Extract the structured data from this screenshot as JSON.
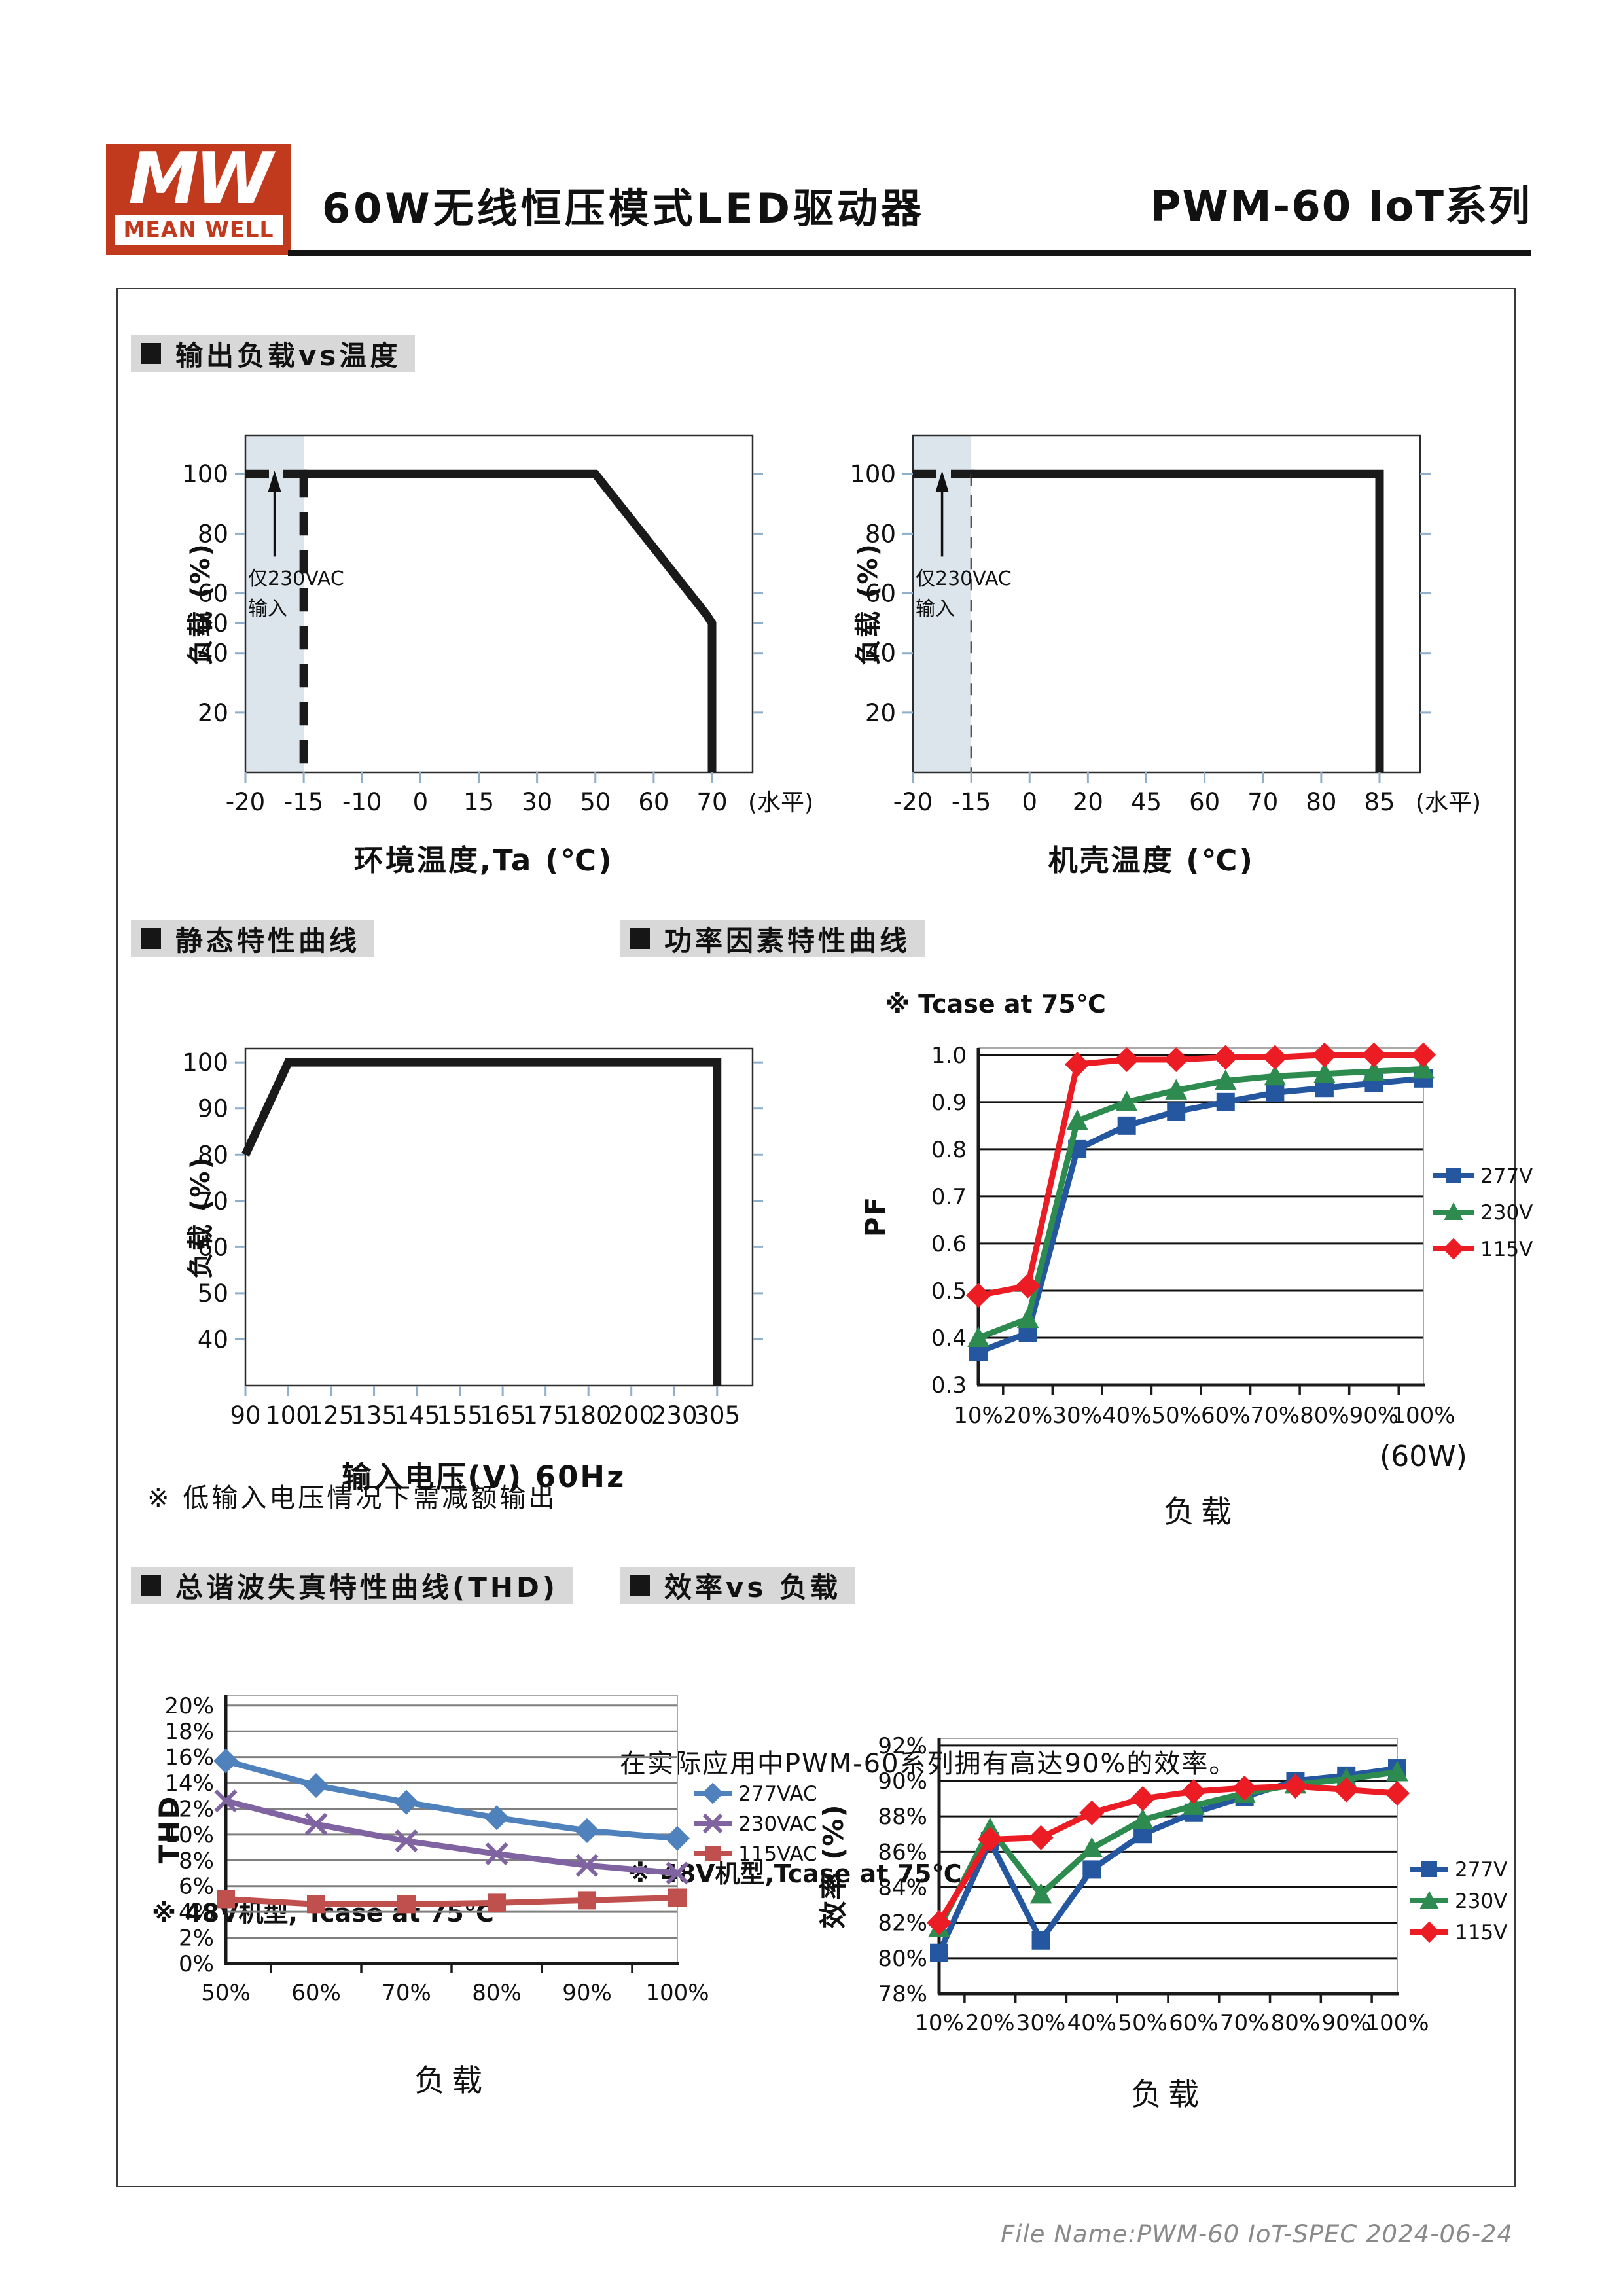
{
  "header": {
    "logo_mw": "MW",
    "logo_name": "MEAN WELL",
    "title": "60W无线恒压模式LED驱动器",
    "series": "PWM-60 IoT系列"
  },
  "sections": {
    "output_vs_temp": "输出负载vs温度",
    "static_curve": "静态特性曲线",
    "pf_curve": "功率因素特性曲线",
    "thd_curve": "总谐波失真特性曲线(THD)",
    "eff_vs_load": "效率vs 负载"
  },
  "notes": {
    "pf_note": "※ Tcase at 75℃",
    "static_note": "※ 低输入电压情况下需减额输出",
    "thd_note": "※ 48V机型, Tcase at 75℃",
    "eff_text": "在实际应用中PWM-60系列拥有高达90%的效率。",
    "eff_note": "※ 48V机型,Tcase at 75℃"
  },
  "footer": {
    "file_name": "File Name:PWM-60 IoT-SPEC  2024-06-24"
  },
  "chart_data": [
    {
      "id": "ambient_derating",
      "type": "line",
      "kind": "derating",
      "xlabel": "环境温度,Ta (℃)",
      "ylabel": "负载 (%)",
      "x_suffix": "(水平)",
      "categories": [
        "-20",
        "-15",
        "-10",
        "0",
        "15",
        "30",
        "50",
        "60",
        "70"
      ],
      "yticks": [
        100,
        80,
        60,
        50,
        40,
        20
      ],
      "ylim": [
        0,
        113
      ],
      "curve": [
        [
          1,
          100
        ],
        [
          6,
          100
        ],
        [
          7.9,
          53
        ],
        [
          8,
          50
        ],
        [
          8,
          0
        ]
      ],
      "dash_h": [
        0,
        1
      ],
      "dash_v": 1,
      "dash_v_thin": false,
      "shade": [
        0,
        1
      ],
      "shade_color": "#dce4ec",
      "annotation": [
        "仅230VAC",
        "输入"
      ]
    },
    {
      "id": "case_derating",
      "type": "line",
      "kind": "derating",
      "xlabel": "机壳温度 (℃)",
      "ylabel": "负载 (%)",
      "x_suffix": "(水平)",
      "categories": [
        "-20",
        "-15",
        "0",
        "20",
        "45",
        "60",
        "70",
        "80",
        "85"
      ],
      "yticks": [
        100,
        80,
        60,
        40,
        20
      ],
      "ylim": [
        0,
        113
      ],
      "curve": [
        [
          1,
          100
        ],
        [
          8,
          100
        ],
        [
          8,
          0
        ]
      ],
      "dash_h": [
        0,
        1
      ],
      "dash_v": 1,
      "dash_v_thin": true,
      "shade": [
        0,
        1
      ],
      "shade_color": "#dce4ec",
      "annotation": [
        "仅230VAC",
        "输入"
      ]
    },
    {
      "id": "static_characteristic",
      "type": "line",
      "kind": "derating",
      "xlabel": "输入电压(V) 60Hz",
      "ylabel": "负载 (%)",
      "categories": [
        "90",
        "100",
        "125",
        "135",
        "145",
        "155",
        "165",
        "175",
        "180",
        "200",
        "230",
        "305"
      ],
      "yticks": [
        100,
        90,
        80,
        70,
        60,
        50,
        40
      ],
      "ylim": [
        30,
        103
      ],
      "curve": [
        [
          0,
          80
        ],
        [
          1,
          100
        ],
        [
          11,
          100
        ],
        [
          11,
          30
        ]
      ]
    },
    {
      "id": "pf",
      "type": "line",
      "kind": "series",
      "title_note": "※ Tcase at 75℃",
      "xlabel": "负载",
      "ylabel": "PF",
      "x_sub": "(60W)",
      "categories": [
        "10%",
        "20%",
        "30%",
        "40%",
        "50%",
        "60%",
        "70%",
        "80%",
        "90%",
        "100%"
      ],
      "ytick_values": [
        1.0,
        0.9,
        0.8,
        0.7,
        0.6,
        0.5,
        0.4,
        0.3
      ],
      "ytick_labels": [
        "1.0",
        "0.9",
        "0.8",
        "0.7",
        "0.6",
        "0.5",
        "0.4",
        "0.3"
      ],
      "ylim": [
        0.3,
        1.015
      ],
      "legend_position": "right",
      "grid": true,
      "series": [
        {
          "name": "277V",
          "color": "#2457a0",
          "marker": "square",
          "values": [
            0.37,
            0.41,
            0.8,
            0.85,
            0.88,
            0.9,
            0.92,
            0.93,
            0.94,
            0.95
          ]
        },
        {
          "name": "230V",
          "color": "#2e8b4f",
          "marker": "triangle",
          "values": [
            0.4,
            0.44,
            0.86,
            0.9,
            0.925,
            0.945,
            0.955,
            0.96,
            0.965,
            0.97
          ]
        },
        {
          "name": "115V",
          "color": "#ec1c24",
          "marker": "diamond",
          "values": [
            0.49,
            0.51,
            0.98,
            0.99,
            0.99,
            0.995,
            0.995,
            1.0,
            1.0,
            1.0
          ]
        }
      ]
    },
    {
      "id": "thd",
      "type": "line",
      "kind": "series",
      "title_note": "※ 48V机型, Tcase at 75℃",
      "xlabel": "负载",
      "ylabel": "THD",
      "categories": [
        "50%",
        "60%",
        "70%",
        "80%",
        "90%",
        "100%"
      ],
      "ytick_values": [
        20,
        18,
        16,
        14,
        12,
        10,
        8,
        6,
        4,
        2,
        0
      ],
      "ytick_labels": [
        "20%",
        "18%",
        "16%",
        "14%",
        "12%",
        "10%",
        "8%",
        "6%",
        "4%",
        "2%",
        "0%"
      ],
      "ylim": [
        0,
        20.8
      ],
      "legend_position": "right",
      "grid": true,
      "series": [
        {
          "name": "277VAC",
          "color": "#4f81bd",
          "marker": "diamond",
          "values": [
            15.7,
            13.8,
            12.5,
            11.3,
            10.3,
            9.7
          ]
        },
        {
          "name": "230VAC",
          "color": "#8064a2",
          "marker": "x",
          "values": [
            12.6,
            10.8,
            9.5,
            8.5,
            7.6,
            7.0
          ]
        },
        {
          "name": "115VAC",
          "color": "#c0504d",
          "marker": "square",
          "values": [
            5.0,
            4.6,
            4.6,
            4.7,
            4.9,
            5.1
          ]
        }
      ]
    },
    {
      "id": "efficiency",
      "type": "line",
      "kind": "series",
      "title_note": "※ 48V机型,Tcase at 75℃",
      "xlabel": "负载",
      "ylabel": "效率 (%)",
      "categories": [
        "10%",
        "20%",
        "30%",
        "40%",
        "50%",
        "60%",
        "70%",
        "80%",
        "90%",
        "100%"
      ],
      "ytick_values": [
        92,
        90,
        88,
        86,
        84,
        82,
        80,
        78
      ],
      "ytick_labels": [
        "92%",
        "90%",
        "88%",
        "86%",
        "84%",
        "82%",
        "80%",
        "78%"
      ],
      "ylim": [
        78,
        92.4
      ],
      "legend_position": "right",
      "grid": true,
      "series": [
        {
          "name": "277V",
          "color": "#2457a0",
          "marker": "square",
          "values": [
            80.3,
            86.6,
            81.0,
            85.0,
            87.0,
            88.2,
            89.1,
            90.0,
            90.3,
            90.7
          ]
        },
        {
          "name": "230V",
          "color": "#2e8b4f",
          "marker": "triangle",
          "values": [
            81.7,
            87.3,
            83.6,
            86.2,
            87.8,
            88.6,
            89.3,
            89.8,
            90.1,
            90.5
          ]
        },
        {
          "name": "115V",
          "color": "#ec1c24",
          "marker": "diamond",
          "values": [
            82.0,
            86.7,
            86.8,
            88.2,
            89.0,
            89.4,
            89.6,
            89.7,
            89.5,
            89.3
          ]
        }
      ]
    }
  ]
}
